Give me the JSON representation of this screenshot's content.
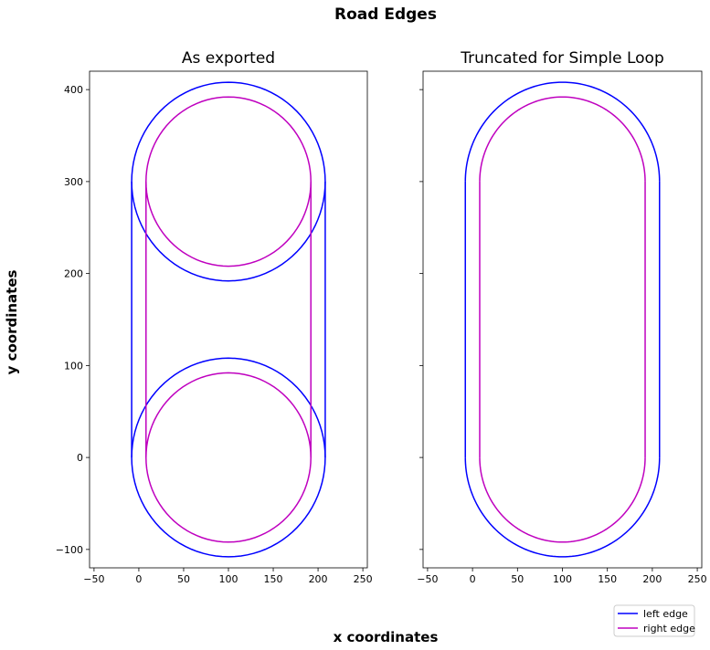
{
  "figure": {
    "suptitle": "Road Edges",
    "supxlabel": "x coordinates",
    "supylabel": "y coordinates"
  },
  "colors": {
    "left_edge": "#0000ff",
    "right_edge": "#bf00bf"
  },
  "legend": {
    "placement": "bottom-right",
    "items": [
      {
        "label": "left edge",
        "color": "#0000ff"
      },
      {
        "label": "right edge",
        "color": "#bf00bf"
      }
    ]
  },
  "chart_data": [
    {
      "type": "line",
      "title": "As exported",
      "xlim": [
        -55,
        255
      ],
      "ylim": [
        -120,
        420
      ],
      "xticks": [
        -50,
        0,
        50,
        100,
        150,
        200,
        250
      ],
      "yticks": [
        -100,
        0,
        100,
        200,
        300,
        400
      ],
      "xtick_labels": [
        "−50",
        "0",
        "50",
        "100",
        "150",
        "200",
        "250"
      ],
      "ytick_labels": [
        "−100",
        "0",
        "100",
        "200",
        "300",
        "400"
      ],
      "show_ytick_labels": true,
      "grid": false,
      "series": [
        {
          "name": "left edge",
          "color": "#0000ff",
          "segments": [
            {
              "kind": "arc",
              "center": [
                100,
                300
              ],
              "radius": 108,
              "from_deg": 0,
              "to_deg": 360
            },
            {
              "kind": "arc",
              "center": [
                100,
                0
              ],
              "radius": 108,
              "from_deg": 0,
              "to_deg": 360
            },
            {
              "kind": "line",
              "points": [
                [
                  -8,
                  0
                ],
                [
                  -8,
                  300
                ]
              ]
            },
            {
              "kind": "line",
              "points": [
                [
                  208,
                  0
                ],
                [
                  208,
                  300
                ]
              ]
            }
          ]
        },
        {
          "name": "right edge",
          "color": "#bf00bf",
          "segments": [
            {
              "kind": "arc",
              "center": [
                100,
                300
              ],
              "radius": 92,
              "from_deg": 0,
              "to_deg": 360
            },
            {
              "kind": "arc",
              "center": [
                100,
                0
              ],
              "radius": 92,
              "from_deg": 0,
              "to_deg": 360
            },
            {
              "kind": "line",
              "points": [
                [
                  8,
                  0
                ],
                [
                  8,
                  300
                ]
              ]
            },
            {
              "kind": "line",
              "points": [
                [
                  192,
                  0
                ],
                [
                  192,
                  300
                ]
              ]
            }
          ]
        }
      ]
    },
    {
      "type": "line",
      "title": "Truncated for Simple Loop",
      "xlim": [
        -55,
        255
      ],
      "ylim": [
        -120,
        420
      ],
      "xticks": [
        -50,
        0,
        50,
        100,
        150,
        200,
        250
      ],
      "yticks": [
        -100,
        0,
        100,
        200,
        300,
        400
      ],
      "xtick_labels": [
        "−50",
        "0",
        "50",
        "100",
        "150",
        "200",
        "250"
      ],
      "ytick_labels": [],
      "show_ytick_labels": false,
      "grid": false,
      "series": [
        {
          "name": "left edge",
          "color": "#0000ff",
          "segments": [
            {
              "kind": "arc",
              "center": [
                100,
                300
              ],
              "radius": 108,
              "from_deg": 0,
              "to_deg": 180
            },
            {
              "kind": "arc",
              "center": [
                100,
                0
              ],
              "radius": 108,
              "from_deg": 180,
              "to_deg": 360
            },
            {
              "kind": "line",
              "points": [
                [
                  -8,
                  0
                ],
                [
                  -8,
                  300
                ]
              ]
            },
            {
              "kind": "line",
              "points": [
                [
                  208,
                  0
                ],
                [
                  208,
                  300
                ]
              ]
            }
          ]
        },
        {
          "name": "right edge",
          "color": "#bf00bf",
          "segments": [
            {
              "kind": "arc",
              "center": [
                100,
                300
              ],
              "radius": 92,
              "from_deg": 0,
              "to_deg": 180
            },
            {
              "kind": "arc",
              "center": [
                100,
                0
              ],
              "radius": 92,
              "from_deg": 180,
              "to_deg": 360
            },
            {
              "kind": "line",
              "points": [
                [
                  8,
                  0
                ],
                [
                  8,
                  300
                ]
              ]
            },
            {
              "kind": "line",
              "points": [
                [
                  192,
                  0
                ],
                [
                  192,
                  300
                ]
              ]
            }
          ]
        }
      ]
    }
  ]
}
